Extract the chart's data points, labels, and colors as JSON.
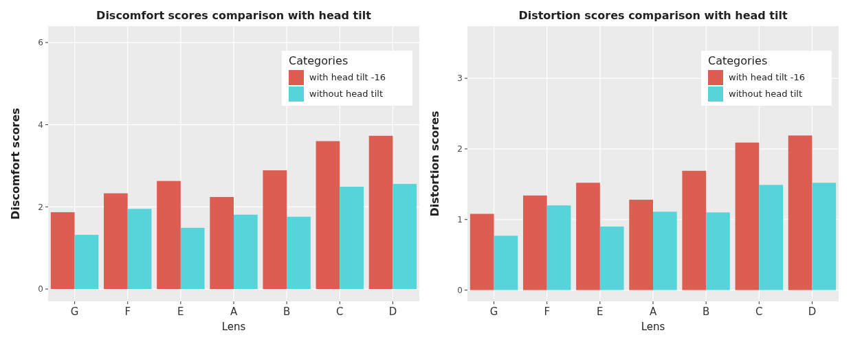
{
  "chart_data": [
    {
      "type": "bar",
      "title": "Discomfort scores comparison with head tilt",
      "xlabel": "Lens",
      "ylabel": "Discomfort scores",
      "legend_title": "Categories",
      "categories": [
        "G",
        "F",
        "E",
        "A",
        "B",
        "C",
        "D"
      ],
      "ylim": [
        -0.3,
        6.4
      ],
      "yticks": [
        0,
        2,
        4,
        6
      ],
      "grid": true,
      "legend": "top right",
      "series": [
        {
          "name": "with head tilt -16",
          "color": "#dc5d52",
          "values": [
            1.87,
            2.33,
            2.63,
            2.24,
            2.89,
            3.6,
            3.73
          ]
        },
        {
          "name": "without head tilt",
          "color": "#56d4da",
          "values": [
            1.32,
            1.95,
            1.49,
            1.81,
            1.76,
            2.49,
            2.56
          ]
        }
      ]
    },
    {
      "type": "bar",
      "title": "Distortion scores comparison with head tilt",
      "xlabel": "Lens",
      "ylabel": "Distortion scores",
      "legend_title": "Categories",
      "categories": [
        "G",
        "F",
        "E",
        "A",
        "B",
        "C",
        "D"
      ],
      "ylim": [
        -0.16,
        3.74
      ],
      "yticks": [
        0,
        1,
        2,
        3
      ],
      "grid": true,
      "legend": "top right",
      "series": [
        {
          "name": "with head tilt -16",
          "color": "#dc5d52",
          "values": [
            1.08,
            1.34,
            1.52,
            1.28,
            1.69,
            2.09,
            2.19
          ]
        },
        {
          "name": "without head tilt",
          "color": "#56d4da",
          "values": [
            0.77,
            1.2,
            0.9,
            1.11,
            1.1,
            1.49,
            1.52
          ]
        }
      ]
    }
  ]
}
